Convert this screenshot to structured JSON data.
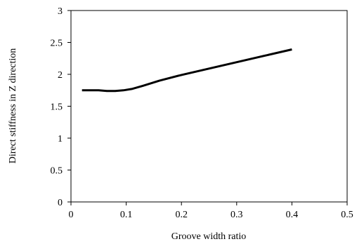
{
  "chart_data": {
    "type": "line",
    "xlabel": "Groove width ratio",
    "ylabel": "Direct stiffness in Z direction",
    "xlim": [
      0,
      0.5
    ],
    "ylim": [
      0,
      3
    ],
    "x_ticks": [
      "0",
      "0.1",
      "0.2",
      "0.3",
      "0.4",
      "0.5"
    ],
    "y_ticks": [
      "0",
      "0.5",
      "1",
      "1.5",
      "2",
      "2.5",
      "3"
    ],
    "grid": false,
    "legend": "none",
    "series": [
      {
        "color": "#000000",
        "x": [
          0.02,
          0.035,
          0.05,
          0.065,
          0.08,
          0.095,
          0.11,
          0.13,
          0.16,
          0.2,
          0.25,
          0.3,
          0.35,
          0.4
        ],
        "y": [
          1.75,
          1.75,
          1.75,
          1.74,
          1.74,
          1.75,
          1.77,
          1.82,
          1.9,
          1.99,
          2.09,
          2.19,
          2.29,
          2.39
        ]
      }
    ]
  }
}
